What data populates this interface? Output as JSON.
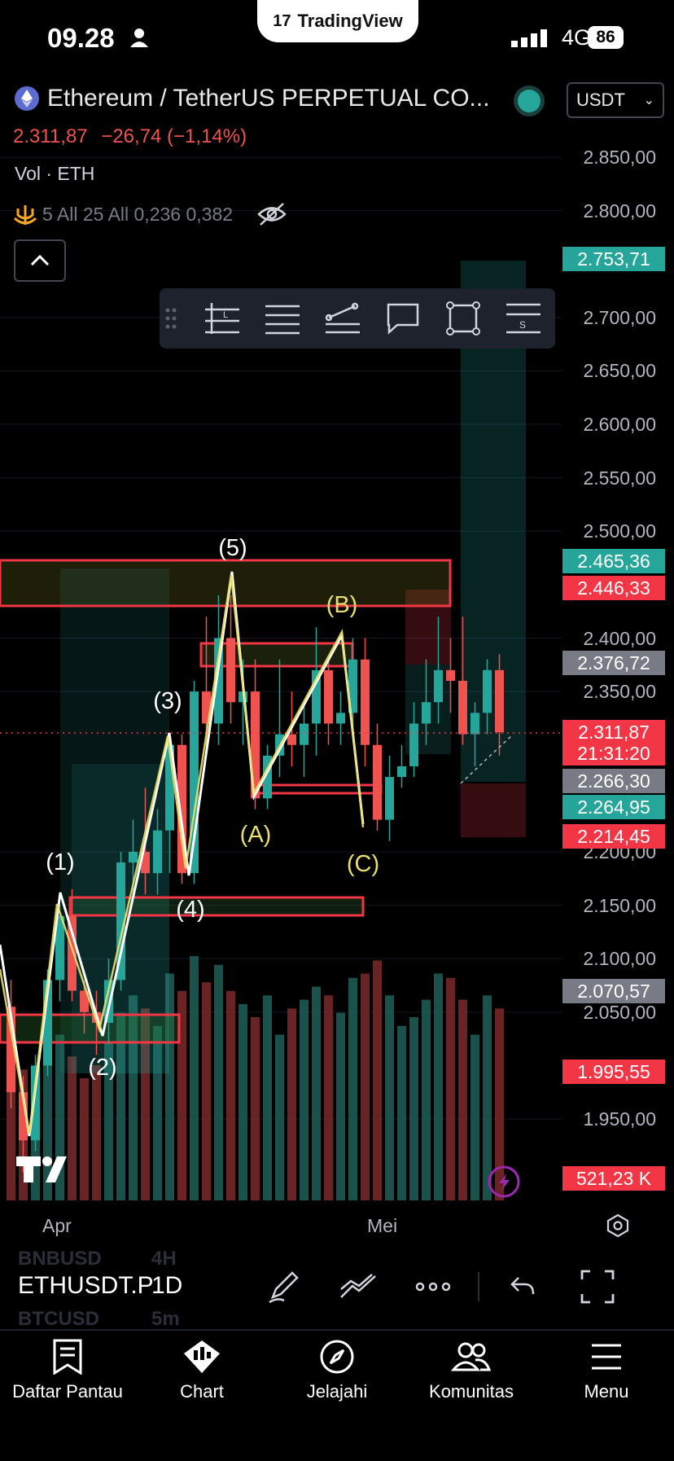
{
  "status_bar": {
    "time": "09.28",
    "network": "4G",
    "battery": "86",
    "brand": "TradingView"
  },
  "header": {
    "symbol_title": "Ethereum / TetherUS PERPETUAL CO...",
    "currency": "USDT",
    "last_price": "2.311,87",
    "change": "−26,74 (−1,14%)",
    "volume_label": "Vol · ETH",
    "indicator_legend": "5 All 25 All 0,236 0,382"
  },
  "price_axis": [
    "2.850,00",
    "2.800,00",
    "2.700,00",
    "2.650,00",
    "2.600,00",
    "2.550,00",
    "2.500,00",
    "2.400,00",
    "2.350,00",
    "2.200,00",
    "2.150,00",
    "2.100,00",
    "2.050,00",
    "1.950,00"
  ],
  "price_tags": [
    {
      "text": "2.753,71",
      "color": "#26a69a"
    },
    {
      "text": "2.465,36",
      "color": "#26a69a"
    },
    {
      "text": "2.446,33",
      "color": "#f23645"
    },
    {
      "text": "2.376,72",
      "color": "#787b86"
    },
    {
      "text": "2.311,87",
      "color": "#f23645"
    },
    {
      "text": "21:31:20",
      "color": "#f23645"
    },
    {
      "text": "2.266,30",
      "color": "#787b86"
    },
    {
      "text": "2.264,95",
      "color": "#26a69a"
    },
    {
      "text": "2.214,45",
      "color": "#f23645"
    },
    {
      "text": "2.070,57",
      "color": "#787b86"
    },
    {
      "text": "1.995,55",
      "color": "#f23645"
    },
    {
      "text": "521,23 K",
      "color": "#f23645"
    }
  ],
  "date_axis": [
    "Apr",
    "Mei"
  ],
  "wave_labels": {
    "impulse": [
      "(1)",
      "(2)",
      "(3)",
      "(4)",
      "(5)"
    ],
    "corrective": [
      "(A)",
      "(B)",
      "(C)"
    ]
  },
  "chart_data": {
    "type": "candlestick",
    "symbol": "ETHUSDT.P",
    "interval": "1D",
    "ylim": [
      1900,
      2880
    ],
    "last": 2311.87,
    "candles": [
      [
        2055,
        2080,
        1960,
        1975
      ],
      [
        1975,
        1990,
        1900,
        1930
      ],
      [
        1930,
        2010,
        1920,
        2000
      ],
      [
        2000,
        2090,
        1990,
        2080
      ],
      [
        2080,
        2150,
        2060,
        2140
      ],
      [
        2140,
        2165,
        2060,
        2070
      ],
      [
        2070,
        2080,
        2030,
        2050
      ],
      [
        2050,
        2070,
        2010,
        2040
      ],
      [
        2040,
        2100,
        2020,
        2080
      ],
      [
        2080,
        2200,
        2070,
        2190
      ],
      [
        2190,
        2230,
        2160,
        2200
      ],
      [
        2200,
        2260,
        2160,
        2180
      ],
      [
        2180,
        2240,
        2160,
        2220
      ],
      [
        2220,
        2310,
        2180,
        2300
      ],
      [
        2300,
        2310,
        2170,
        2180
      ],
      [
        2180,
        2360,
        2170,
        2350
      ],
      [
        2350,
        2420,
        2290,
        2320
      ],
      [
        2320,
        2440,
        2300,
        2400
      ],
      [
        2400,
        2440,
        2320,
        2340
      ],
      [
        2340,
        2380,
        2300,
        2350
      ],
      [
        2350,
        2380,
        2240,
        2250
      ],
      [
        2250,
        2300,
        2240,
        2290
      ],
      [
        2290,
        2380,
        2270,
        2310
      ],
      [
        2310,
        2350,
        2280,
        2300
      ],
      [
        2300,
        2340,
        2270,
        2320
      ],
      [
        2320,
        2410,
        2290,
        2370
      ],
      [
        2370,
        2380,
        2300,
        2320
      ],
      [
        2320,
        2350,
        2300,
        2330
      ],
      [
        2330,
        2400,
        2310,
        2380
      ],
      [
        2380,
        2400,
        2280,
        2300
      ],
      [
        2300,
        2320,
        2220,
        2230
      ],
      [
        2230,
        2290,
        2210,
        2270
      ],
      [
        2270,
        2300,
        2260,
        2280
      ],
      [
        2280,
        2340,
        2270,
        2320
      ],
      [
        2320,
        2380,
        2300,
        2340
      ],
      [
        2340,
        2420,
        2320,
        2370
      ],
      [
        2370,
        2400,
        2330,
        2360
      ],
      [
        2360,
        2420,
        2300,
        2310
      ],
      [
        2310,
        2340,
        2280,
        2330
      ],
      [
        2330,
        2380,
        2310,
        2370
      ],
      [
        2370,
        2385,
        2290,
        2311.87
      ]
    ],
    "volume": [
      420,
      300,
      260,
      350,
      380,
      330,
      280,
      310,
      360,
      430,
      470,
      440,
      400,
      520,
      480,
      560,
      500,
      540,
      480,
      450,
      420,
      470,
      380,
      440,
      460,
      490,
      470,
      430,
      510,
      520,
      550,
      470,
      400,
      420,
      460,
      520,
      510,
      460,
      380,
      470,
      440
    ]
  }
}
